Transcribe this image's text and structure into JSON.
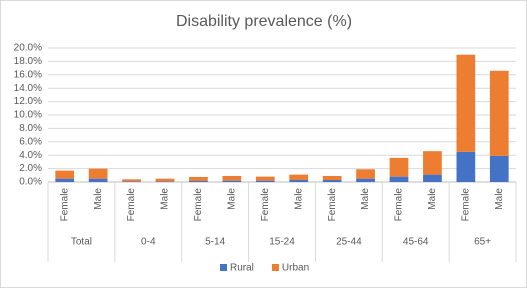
{
  "chart_data": {
    "type": "stacked_bar",
    "title": "Disability prevalence (%)",
    "categories": [
      "Female",
      "Male",
      "Female",
      "Male",
      "Female",
      "Male",
      "Female",
      "Male",
      "Female",
      "Male",
      "Female",
      "Male",
      "Female",
      "Male"
    ],
    "groups": [
      "Total",
      "0-4",
      "5-14",
      "15-24",
      "25-44",
      "45-64",
      "65+"
    ],
    "series": [
      {
        "name": "Rural",
        "color": "#4472c4",
        "values": [
          0.5,
          0.5,
          0.1,
          0.1,
          0.15,
          0.2,
          0.2,
          0.3,
          0.3,
          0.5,
          0.8,
          1.1,
          4.5,
          3.9
        ]
      },
      {
        "name": "Urban",
        "color": "#ed7d31",
        "values": [
          1.2,
          1.5,
          0.3,
          0.4,
          0.6,
          0.7,
          0.6,
          0.8,
          0.6,
          1.4,
          2.8,
          3.5,
          14.5,
          12.7
        ]
      }
    ],
    "ylim": [
      0,
      20
    ],
    "yticks": [
      {
        "value": 0,
        "label": "0.0%"
      },
      {
        "value": 2,
        "label": "2.0%"
      },
      {
        "value": 4,
        "label": "4.0%"
      },
      {
        "value": 6,
        "label": "6.0%"
      },
      {
        "value": 8,
        "label": "8.0%"
      },
      {
        "value": 10,
        "label": "10.0%"
      },
      {
        "value": 12,
        "label": "12.0%"
      },
      {
        "value": 14,
        "label": "14.0%"
      },
      {
        "value": 16,
        "label": "16.0%"
      },
      {
        "value": 18,
        "label": "18.0%"
      },
      {
        "value": 20,
        "label": "20.0%"
      }
    ],
    "grid": true,
    "legend": "bottom"
  }
}
